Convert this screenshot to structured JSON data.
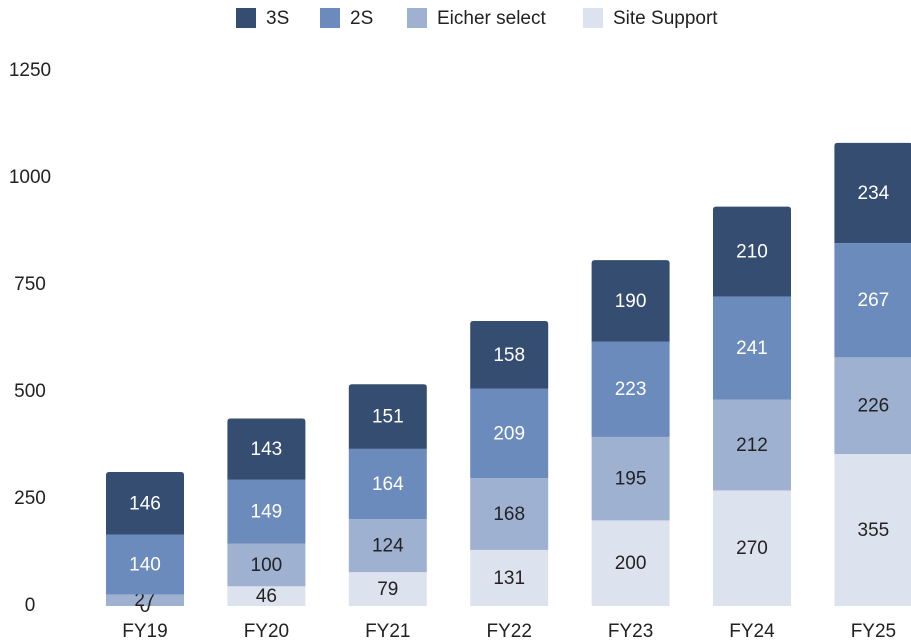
{
  "chart_data": {
    "type": "stacked_bar",
    "categories": [
      "FY19",
      "FY20",
      "FY21",
      "FY22",
      "FY23",
      "FY24",
      "FY25"
    ],
    "series": [
      {
        "name": "Site Support",
        "color": "#dde3ee",
        "values": [
          0,
          46,
          79,
          131,
          200,
          270,
          355
        ]
      },
      {
        "name": "Eicher select",
        "color": "#9fb1d1",
        "values": [
          27,
          100,
          124,
          168,
          195,
          212,
          226
        ]
      },
      {
        "name": "2S",
        "color": "#6a8bbb",
        "values": [
          140,
          149,
          164,
          209,
          223,
          241,
          267
        ]
      },
      {
        "name": "3S",
        "color": "#364d72",
        "values": [
          146,
          143,
          151,
          158,
          190,
          210,
          234
        ]
      }
    ],
    "ylim": [
      0,
      1250
    ],
    "yticks": [
      0,
      250,
      500,
      750,
      1000,
      1250
    ],
    "grid": false,
    "legend": "top"
  }
}
